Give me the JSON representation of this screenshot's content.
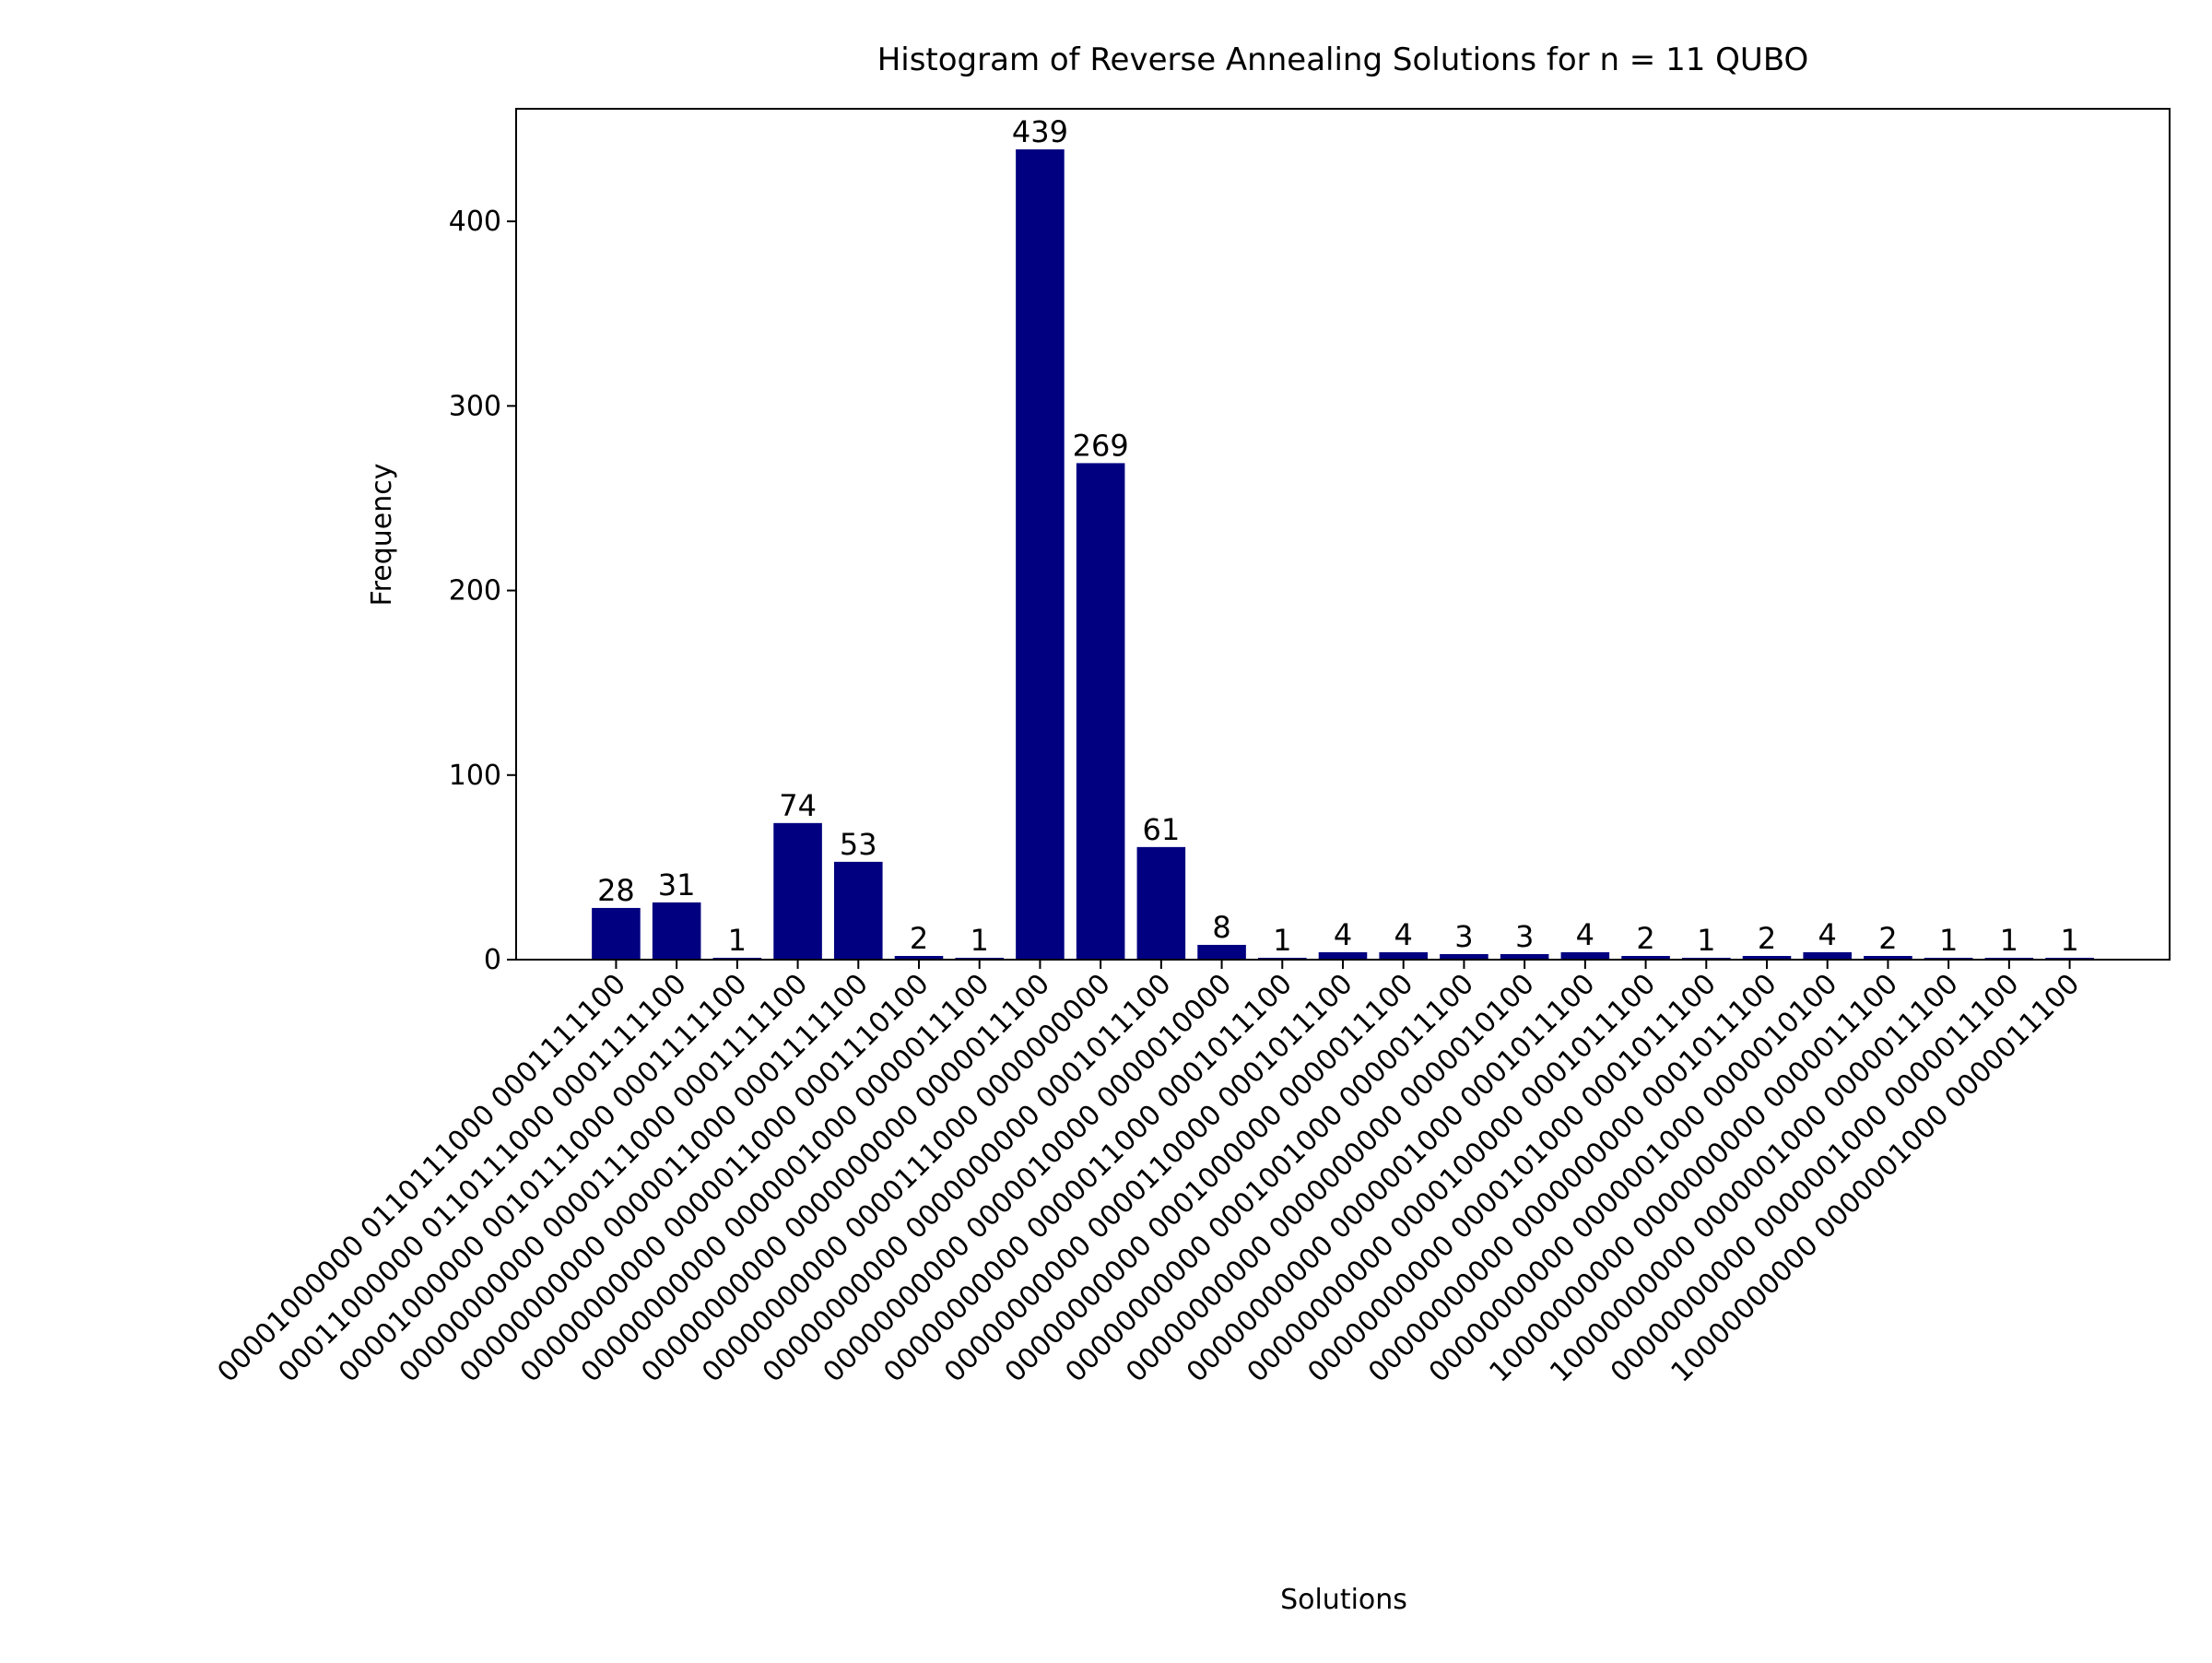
{
  "chart_data": {
    "type": "bar",
    "title": "Histogram of Reverse Annealing Solutions for n = 11 QUBO",
    "xlabel": "Solutions",
    "ylabel": "Frequency",
    "categories": [
      "00001000000 0110111000 0001111100",
      "00011000000 0110111000 0001111100",
      "00001000000 0010111000 0001111100",
      "00000000000 0000111000 0001111100",
      "00000000000 0000011000 0001111100",
      "00000000000 0000011000 0001110100",
      "00000000000 0000001000 0000011100",
      "00000000000 0000000000 0000011100",
      "00000000000 0000111000 0000000000",
      "00000000000 0000000000 0001011100",
      "00000000000 0000010000 0000010000",
      "00000000000 0000011000 0001011100",
      "00000000000 0000110000 0001011100",
      "00000000000 0001000000 0000011100",
      "00000000000 0001001000 0000011100",
      "00000000000 0000000000 0000010100",
      "00000000000 0000001000 0001011100",
      "00000000000 0000100000 0001011100",
      "00000000000 0000101000 0001011100",
      "00000000000 0000000000 0001011100",
      "00000000000 0000001000 0000010100",
      "10000000000 0000000000 0000011100",
      "10000000000 0000001000 0000011100",
      "00000000000 0000001000 0000011100",
      "10000000000 0000001000 0000011100"
    ],
    "values": [
      28,
      31,
      1,
      74,
      53,
      2,
      1,
      439,
      269,
      61,
      8,
      1,
      4,
      4,
      3,
      3,
      4,
      2,
      1,
      2,
      4,
      2,
      1,
      1,
      1
    ],
    "color": "#000080",
    "ylim": [
      0,
      461
    ],
    "yticks": [
      0,
      100,
      200,
      300,
      400
    ],
    "grid": false
  }
}
